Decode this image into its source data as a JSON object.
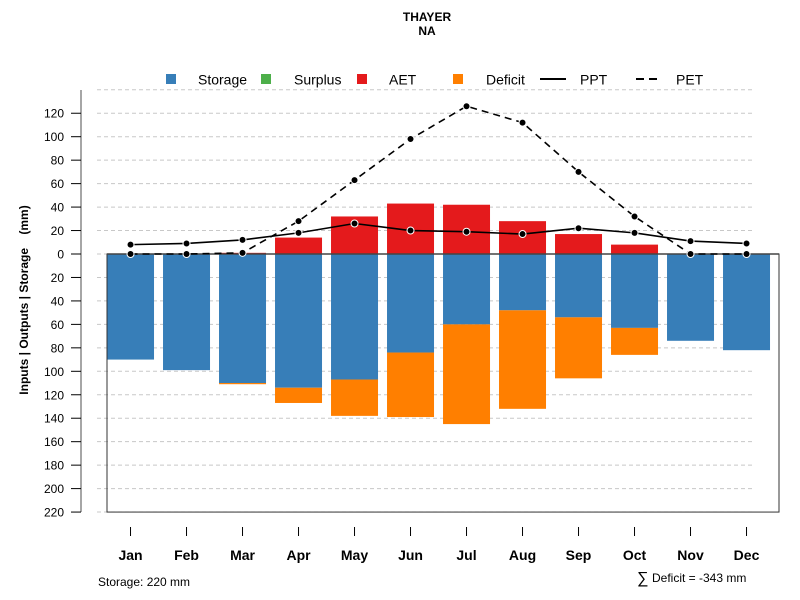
{
  "chart_data": {
    "type": "bar",
    "title": "THAYER",
    "subtitle": "NA",
    "xlabel": "",
    "ylabel": "Inputs | Outputs | Storage    (mm)",
    "ylim": [
      -220,
      140
    ],
    "yticks": [
      120,
      100,
      80,
      60,
      40,
      20,
      0,
      -20,
      -40,
      -60,
      -80,
      -100,
      -120,
      -140,
      -160,
      -180,
      -200,
      -220
    ],
    "ytick_labels": [
      "120",
      "100",
      "80",
      "60",
      "40",
      "20",
      "0",
      "20",
      "40",
      "60",
      "80",
      "100",
      "120",
      "140",
      "160",
      "180",
      "200",
      "220"
    ],
    "grid": true,
    "legend_position": "top",
    "categories": [
      "Jan",
      "Feb",
      "Mar",
      "Apr",
      "May",
      "Jun",
      "Jul",
      "Aug",
      "Sep",
      "Oct",
      "Nov",
      "Dec"
    ],
    "legend": [
      {
        "name": "Storage",
        "kind": "box",
        "color": "#377eb8"
      },
      {
        "name": "Surplus",
        "kind": "box",
        "color": "#4daf4a"
      },
      {
        "name": "AET",
        "kind": "box",
        "color": "#e41a1c"
      },
      {
        "name": "Deficit",
        "kind": "box",
        "color": "#ff7f00"
      },
      {
        "name": "PPT",
        "kind": "solid-line",
        "color": "#000000"
      },
      {
        "name": "PET",
        "kind": "dashed-line",
        "color": "#000000"
      }
    ],
    "series": [
      {
        "name": "Storage",
        "direction": "down",
        "color": "#377eb8",
        "values": [
          90,
          99,
          110,
          114,
          107,
          84,
          60,
          48,
          54,
          63,
          74,
          82
        ]
      },
      {
        "name": "Deficit",
        "direction": "down",
        "color": "#ff7f00",
        "values": [
          0,
          0,
          1,
          13,
          31,
          55,
          85,
          84,
          52,
          23,
          0,
          0
        ]
      },
      {
        "name": "Surplus",
        "direction": "up",
        "color": "#4daf4a",
        "values": [
          0,
          0,
          0,
          0,
          0,
          0,
          0,
          0,
          0,
          0,
          0,
          0
        ]
      },
      {
        "name": "AET",
        "direction": "up",
        "color": "#e41a1c",
        "values": [
          0,
          0,
          1,
          14,
          32,
          43,
          42,
          28,
          17,
          8,
          0,
          0
        ]
      },
      {
        "name": "PPT",
        "type": "line",
        "color": "#000000",
        "values": [
          8,
          9,
          12,
          18,
          26,
          20,
          19,
          17,
          22,
          18,
          11,
          9
        ]
      },
      {
        "name": "PET",
        "type": "dashed-line",
        "color": "#000000",
        "values": [
          0,
          0,
          1,
          28,
          63,
          98,
          126,
          112,
          70,
          32,
          0,
          0
        ]
      }
    ],
    "annotations": {
      "storage_capacity": "Storage: 220 mm",
      "deficit_sum": "Deficit = -343 mm",
      "sum_symbol": "∑"
    }
  }
}
